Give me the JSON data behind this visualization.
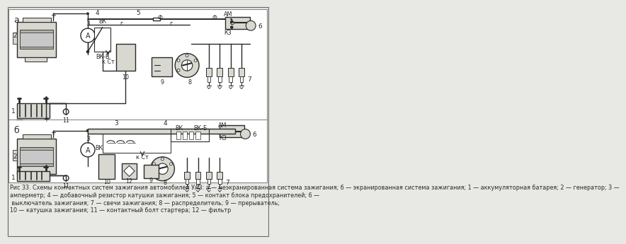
{
  "bg_color": "#e8e8e4",
  "white": "#ffffff",
  "line_color": "#2a2a2a",
  "gray_fill": "#c8c8c8",
  "light_gray": "#d8d8d0",
  "medium_gray": "#b0b0a8",
  "caption_lines": [
    "Рис 33. Схемы контактных систем зажигания автомобилей УАЗ: а — неэкранированная система зажигания; б — экранированная система зажигания; 1 — аккумуляторная батарея; 2 — генератор; 3 —",
    "амперметр; 4 — добавочный резистор катушки зажигания; 5 — контакт блока предохранителей; 6 —",
    " выключатель зажигания; 7 — свечи зажигания; 8 — распределитель; 9 — прерыватель;",
    "10 — катушка зажигания; 11 — контактный болт стартера; 12 — фильтр"
  ],
  "cap_fs": 5.8,
  "label_fs": 6.5,
  "small_fs": 5.8
}
